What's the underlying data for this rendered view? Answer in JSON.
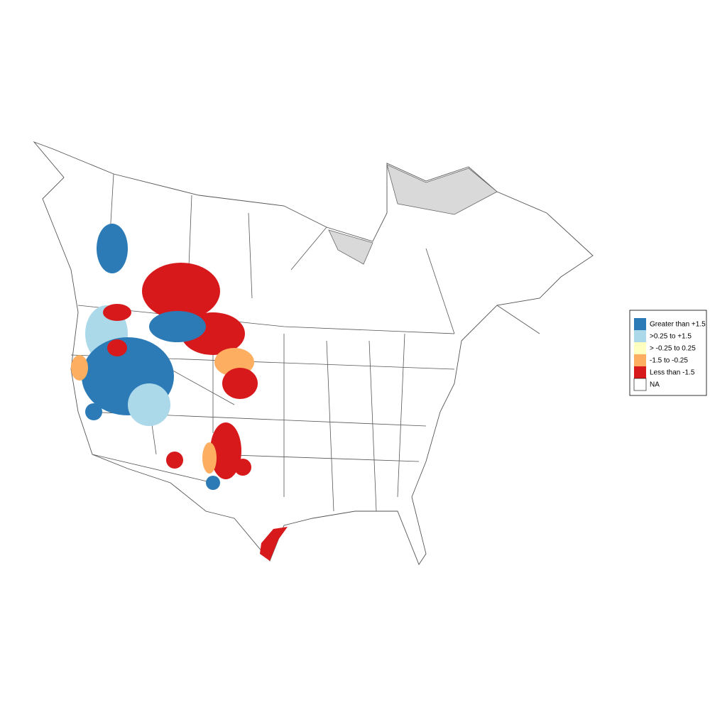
{
  "legend": {
    "items": [
      {
        "label": "Greater than +1.5",
        "color": "#2c7bb6"
      },
      {
        "label": ">0.25 to +1.5",
        "color": "#abd9e9"
      },
      {
        "label": "> -0.25 to 0.25",
        "color": "#ffffbf"
      },
      {
        "label": "-1.5 to -0.25",
        "color": "#fdae61"
      },
      {
        "label": "Less than -1.5",
        "color": "#d7191c"
      },
      {
        "label": "NA",
        "color": "#ffffff"
      }
    ]
  }
}
